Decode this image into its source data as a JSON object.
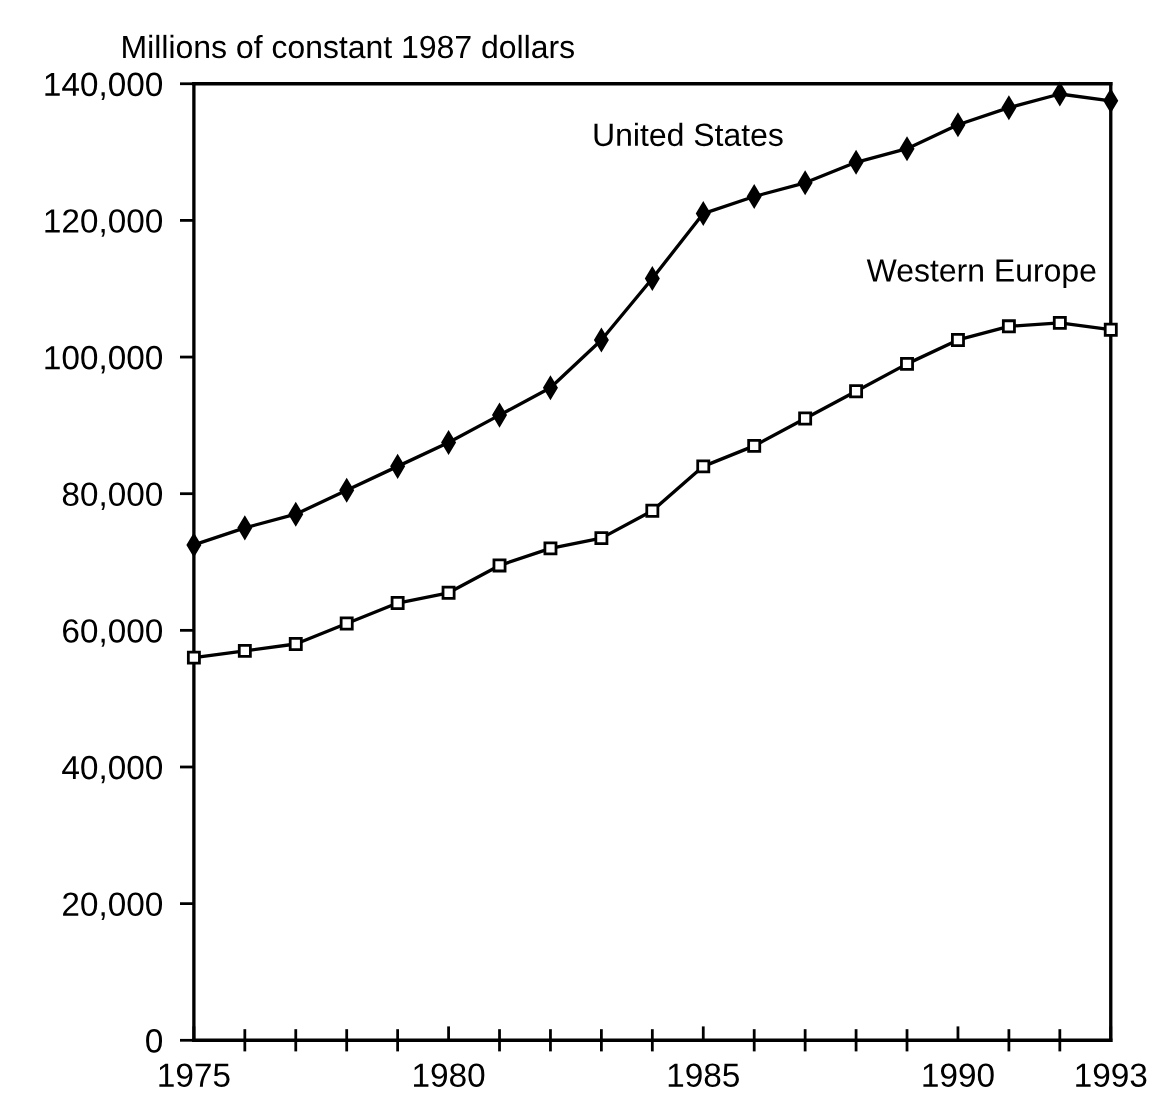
{
  "chart_data": {
    "type": "line",
    "ylabel": "Millions of constant 1987 dollars",
    "x": [
      1975,
      1976,
      1977,
      1978,
      1979,
      1980,
      1981,
      1982,
      1983,
      1984,
      1985,
      1986,
      1987,
      1988,
      1989,
      1990,
      1991,
      1992,
      1993
    ],
    "series": [
      {
        "name": "United States",
        "color": "#000000",
        "marker": "diamond",
        "values": [
          72500,
          75000,
          77000,
          80500,
          84000,
          87500,
          91500,
          95500,
          102500,
          111500,
          121000,
          123500,
          125500,
          128500,
          130500,
          134000,
          136500,
          138500,
          137500
        ]
      },
      {
        "name": "Western Europe",
        "color": "#000000",
        "marker": "square",
        "values": [
          56000,
          57000,
          58000,
          61000,
          64000,
          65500,
          69500,
          72000,
          73500,
          77500,
          84000,
          87000,
          91000,
          95000,
          99000,
          102500,
          104500,
          105000,
          104000
        ]
      }
    ],
    "xlim": [
      1975,
      1993
    ],
    "xticks": [
      1975,
      1980,
      1985,
      1990,
      1993
    ],
    "ylim": [
      0,
      140000
    ],
    "yticks": [
      {
        "value": 0,
        "label": "0"
      },
      {
        "value": 20000,
        "label": "20,000"
      },
      {
        "value": 40000,
        "label": "40,000"
      },
      {
        "value": 60000,
        "label": "60,000"
      },
      {
        "value": 80000,
        "label": "80,000"
      },
      {
        "value": 100000,
        "label": "100,000"
      },
      {
        "value": 120000,
        "label": "120,000"
      },
      {
        "value": 140000,
        "label": "140,000"
      }
    ],
    "grid": false,
    "legend": false,
    "line_style": "solid"
  }
}
